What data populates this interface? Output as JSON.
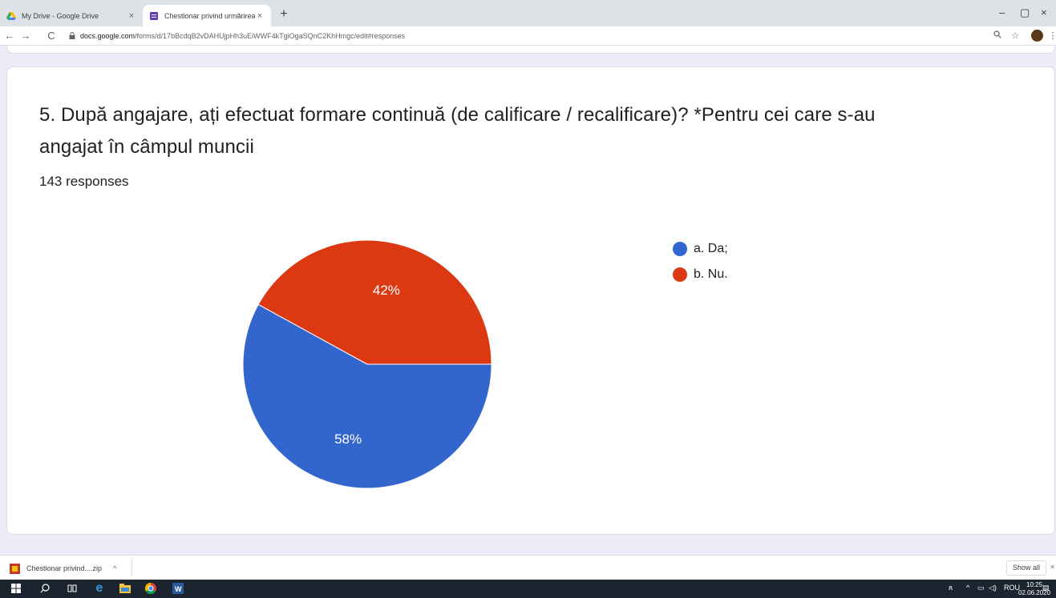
{
  "browser": {
    "tabs": [
      {
        "title": "My Drive - Google Drive",
        "close": "×",
        "favicon": "google-drive-icon"
      },
      {
        "title": "Chestionar privind urmărirea tra",
        "close": "×",
        "favicon": "google-forms-icon"
      }
    ],
    "new_tab": "+",
    "window_controls": {
      "minimize": "–",
      "maximize": "▢",
      "close": "×"
    },
    "nav": {
      "back": "←",
      "forward": "→",
      "reload": "C"
    },
    "url_host": "docs.google.com",
    "url_path": "/forms/d/17bBcdqB2vDAHUjpHh3uEiWWF4kTgiOgaSQnC2KhHmgc/edit#responses"
  },
  "question": {
    "title": "5. După angajare, ați efectuat formare continuă (de calificare / recalificare)? *Pentru cei care s-au angajat în câmpul muncii",
    "responses": "143 responses"
  },
  "chart_data": {
    "type": "pie",
    "labels": [
      "a. Da;",
      "b. Nu."
    ],
    "values": [
      58,
      42
    ],
    "value_labels": [
      "58%",
      "42%"
    ],
    "colors": [
      "#3366cc",
      "#dc3912"
    ],
    "legend_position": "right"
  },
  "downloads": {
    "item": "Chestionar privind....zip",
    "chevron": "^",
    "show_all": "Show all",
    "close": "×"
  },
  "taskbar": {
    "lang": "ROU",
    "time": "10:25",
    "date": "02.06.2020"
  }
}
